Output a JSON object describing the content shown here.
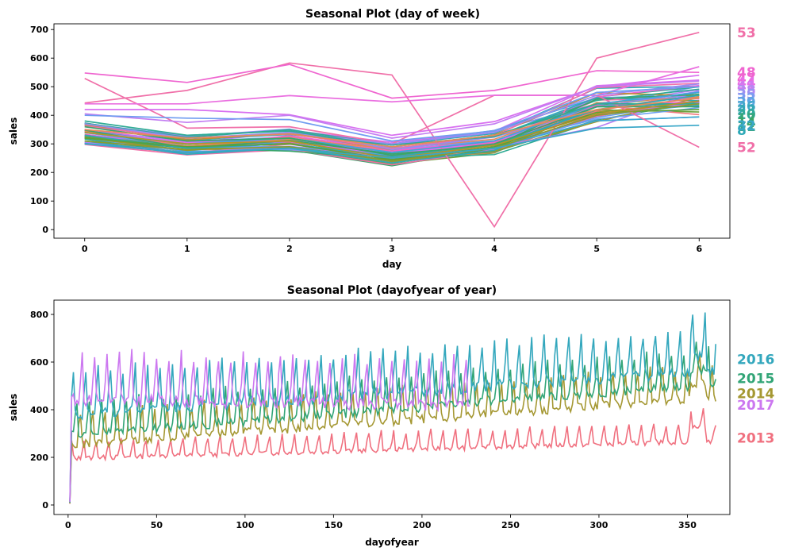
{
  "chart_data": [
    {
      "type": "line",
      "title": "Seasonal Plot (day of week)",
      "xlabel": "day",
      "ylabel": "sales",
      "xlim": [
        -0.3,
        6.3
      ],
      "ylim": [
        -30,
        720
      ],
      "xticks": [
        0,
        1,
        2,
        3,
        4,
        5,
        6
      ],
      "yticks": [
        0,
        100,
        200,
        300,
        400,
        500,
        600,
        700
      ],
      "x": [
        0,
        1,
        2,
        3,
        4,
        5,
        6
      ],
      "series_count_approx": 53,
      "series": [
        {
          "name": "53",
          "color": "#f06fa8",
          "values": [
            443,
            487,
            583,
            541,
            10,
            600,
            690
          ]
        },
        {
          "name": "52",
          "color": "#f06fa8",
          "values": [
            529,
            355,
            360,
            300,
            470,
            470,
            288
          ]
        },
        {
          "name": "48",
          "color": "#ef65d0",
          "values": [
            548,
            515,
            578,
            460,
            487,
            556,
            550
          ]
        },
        {
          "name": "47",
          "color": "#ea6fe0",
          "values": [
            440,
            440,
            469,
            447,
            470,
            470,
            570
          ]
        },
        {
          "name": "46",
          "color": "#d86ff0",
          "values": [
            420,
            420,
            402,
            330,
            378,
            500,
            540
          ]
        },
        {
          "name": "45",
          "color": "#c37ef2",
          "values": [
            405,
            375,
            400,
            320,
            370,
            500,
            520
          ]
        },
        {
          "name": "40",
          "color": "#9a8cf3",
          "values": [
            370,
            320,
            340,
            300,
            340,
            470,
            510
          ]
        },
        {
          "name": "35",
          "color": "#6f9cf0",
          "values": [
            400,
            390,
            385,
            310,
            345,
            480,
            500
          ]
        },
        {
          "name": "30",
          "color": "#3ea6d9",
          "values": [
            340,
            300,
            320,
            270,
            310,
            440,
            480
          ]
        },
        {
          "name": "25",
          "color": "#2ea9b8",
          "values": [
            330,
            285,
            300,
            255,
            295,
            420,
            470
          ]
        },
        {
          "name": "20",
          "color": "#2fab94",
          "values": [
            380,
            330,
            345,
            290,
            330,
            440,
            440
          ]
        },
        {
          "name": "15",
          "color": "#3aa66a",
          "values": [
            360,
            310,
            320,
            260,
            300,
            430,
            430
          ]
        },
        {
          "name": "10",
          "color": "#5aa23a",
          "values": [
            320,
            290,
            300,
            245,
            290,
            410,
            420
          ]
        },
        {
          "name": "5",
          "color": "#8c9a2f",
          "values": [
            310,
            280,
            290,
            240,
            285,
            400,
            440
          ]
        },
        {
          "name": "3",
          "color": "#b49526",
          "values": [
            340,
            300,
            310,
            250,
            295,
            405,
            450
          ]
        },
        {
          "name": "32",
          "color": "#39a7c8",
          "values": [
            300,
            270,
            285,
            250,
            285,
            355,
            365
          ]
        },
        {
          "name": "1",
          "color": "#e58a5a",
          "values": [
            350,
            320,
            335,
            290,
            330,
            420,
            460
          ]
        }
      ],
      "end_labels": [
        "53",
        "48",
        "52",
        "32"
      ]
    },
    {
      "type": "line",
      "title": "Seasonal Plot (dayofyear of year)",
      "xlabel": "dayofyear",
      "ylabel": "sales",
      "xlim": [
        -8,
        374
      ],
      "ylim": [
        -40,
        860
      ],
      "xticks": [
        0,
        50,
        100,
        150,
        200,
        250,
        300,
        350
      ],
      "yticks": [
        0,
        200,
        400,
        600,
        800
      ],
      "series": [
        {
          "name": "2013",
          "color": "#f0707f",
          "base": 195,
          "amp": 50,
          "trend": 0.2,
          "days": 366
        },
        {
          "name": "2014",
          "color": "#a59833",
          "base": 250,
          "amp": 90,
          "trend": 0.55,
          "days": 366
        },
        {
          "name": "2015",
          "color": "#32a577",
          "base": 290,
          "amp": 95,
          "trend": 0.6,
          "days": 366
        },
        {
          "name": "2016",
          "color": "#33a7bd",
          "base": 380,
          "amp": 120,
          "trend": 0.5,
          "days": 366
        },
        {
          "name": "2017",
          "color": "#cc78f0",
          "base": 440,
          "amp": 130,
          "trend": -0.1,
          "days": 227
        }
      ],
      "end_labels": [
        "2016",
        "2015",
        "2014",
        "2017",
        "2013"
      ]
    }
  ]
}
